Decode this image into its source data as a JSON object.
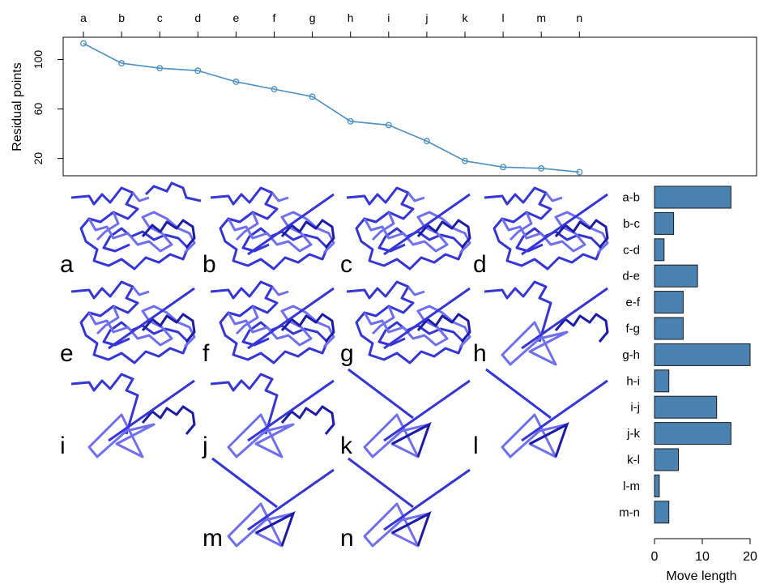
{
  "chart_data": [
    {
      "type": "line",
      "x": [
        "a",
        "b",
        "c",
        "d",
        "e",
        "f",
        "g",
        "h",
        "i",
        "j",
        "k",
        "l",
        "m",
        "n"
      ],
      "y": [
        113,
        97,
        93,
        91,
        82,
        76,
        70,
        50,
        47,
        34,
        18,
        13,
        12,
        9
      ],
      "ylabel": "Residual points",
      "yticks": [
        20,
        60,
        100
      ],
      "ylim": [
        6,
        118
      ],
      "x_axis_position": "top",
      "marker": "open-circle",
      "line_color": "#4a90c4",
      "grid": false
    },
    {
      "type": "bar",
      "orientation": "horizontal",
      "categories": [
        "a-b",
        "b-c",
        "c-d",
        "d-e",
        "e-f",
        "f-g",
        "g-h",
        "h-i",
        "i-j",
        "j-k",
        "k-l",
        "l-m",
        "m-n"
      ],
      "values": [
        16,
        4,
        2,
        9,
        6,
        6,
        20,
        3,
        13,
        16,
        5,
        1,
        3
      ],
      "xlabel": "Move length",
      "xticks": [
        0,
        10,
        20
      ],
      "xlim": [
        0,
        20
      ],
      "bar_color": "#4a82b4",
      "grid": false
    }
  ],
  "structures": {
    "labels": [
      "a",
      "b",
      "c",
      "d",
      "e",
      "f",
      "g",
      "h",
      "i",
      "j",
      "k",
      "l",
      "m",
      "n"
    ],
    "color": "#3535d8"
  }
}
